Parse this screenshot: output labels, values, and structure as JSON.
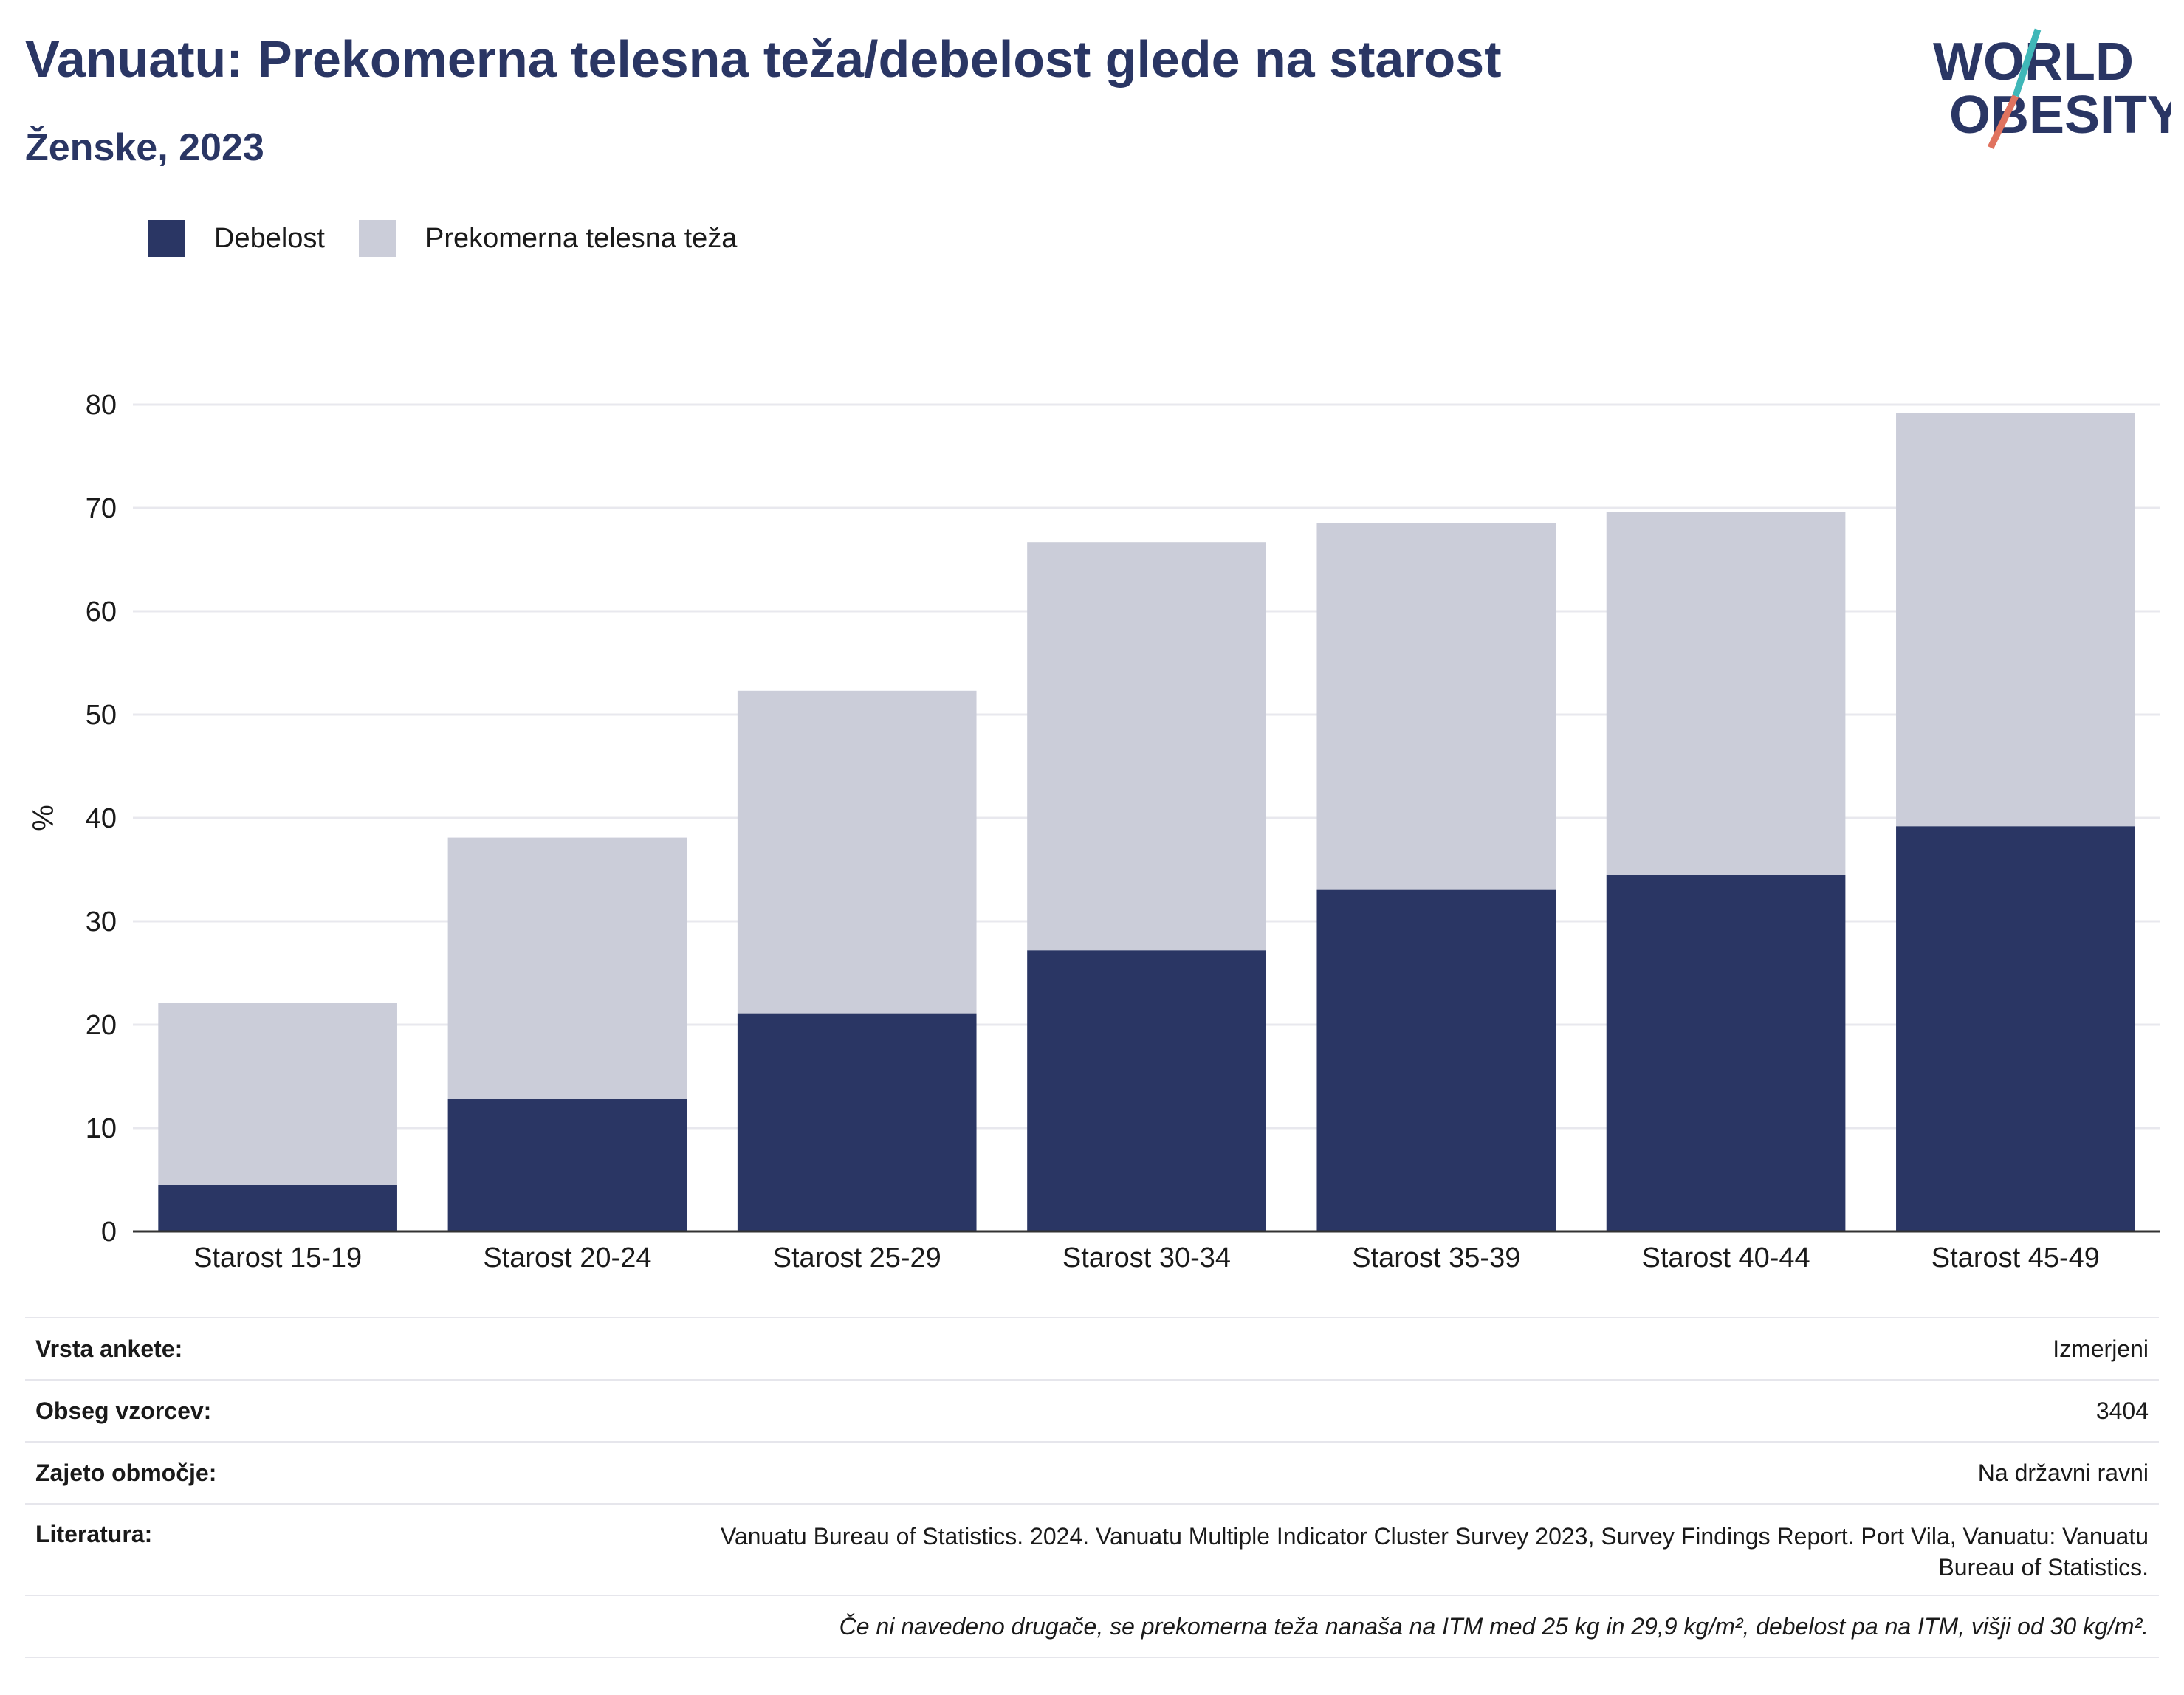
{
  "header": {
    "title": "Vanuatu: Prekomerna telesna teža/debelost glede na starost",
    "subtitle": "Ženske, 2023"
  },
  "logo": {
    "line1": "WORLD",
    "line2": "OBESITY"
  },
  "legend": [
    {
      "label": "Debelost",
      "color": "#2a3664"
    },
    {
      "label": "Prekomerna telesna teža",
      "color": "#cbcdd9"
    }
  ],
  "chart_data": {
    "type": "bar",
    "stacked": true,
    "categories": [
      "Starost 15-19",
      "Starost 20-24",
      "Starost 25-29",
      "Starost 30-34",
      "Starost 35-39",
      "Starost 40-44",
      "Starost 45-49"
    ],
    "series": [
      {
        "name": "Debelost",
        "color": "#2a3664",
        "values": [
          4.5,
          12.8,
          21.1,
          27.2,
          33.1,
          34.5,
          39.2
        ]
      },
      {
        "name": "Prekomerna telesna teža",
        "color": "#cbcdd9",
        "values": [
          17.6,
          25.3,
          31.2,
          39.5,
          35.4,
          35.1,
          40.0
        ]
      }
    ],
    "ylabel": "%",
    "ylim": [
      0,
      80
    ],
    "yticks": [
      0,
      10,
      20,
      30,
      40,
      50,
      60,
      70,
      80
    ],
    "grid": true
  },
  "info": {
    "survey_type": {
      "label": "Vrsta ankete:",
      "value": "Izmerjeni"
    },
    "sample_size": {
      "label": "Obseg vzorcev:",
      "value": "3404"
    },
    "coverage": {
      "label": "Zajeto območje:",
      "value": "Na državni ravni"
    },
    "reference": {
      "label": "Literatura:",
      "value": "Vanuatu Bureau of Statistics. 2024. Vanuatu Multiple Indicator Cluster Survey 2023, Survey Findings Report. Port Vila, Vanuatu: Vanuatu Bureau of Statistics."
    },
    "note": "Če ni navedeno drugače, se prekomerna teža nanaša na ITM med 25 kg in 29,9 kg/m², debelost pa na ITM, višji od 30 kg/m²."
  }
}
